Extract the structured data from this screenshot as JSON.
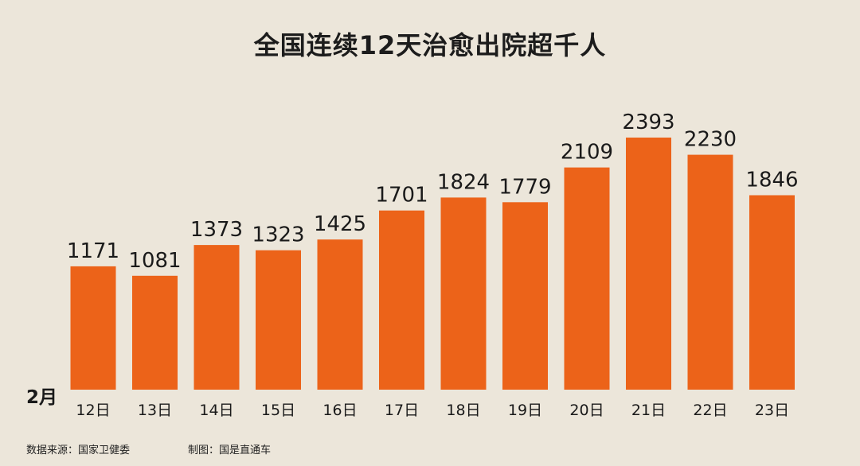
{
  "chart_data": {
    "type": "bar",
    "title": "全国连续12天治愈出院超千人",
    "month_label": "2月",
    "categories": [
      "12日",
      "13日",
      "14日",
      "15日",
      "16日",
      "17日",
      "18日",
      "19日",
      "20日",
      "21日",
      "22日",
      "23日"
    ],
    "values": [
      1171,
      1081,
      1373,
      1323,
      1425,
      1701,
      1824,
      1779,
      2109,
      2393,
      2230,
      1846
    ],
    "ylim": [
      0,
      2393
    ],
    "bar_color": "#ec6319",
    "background_color": "#ece6da",
    "grid": false
  },
  "footer": {
    "source": "数据来源：国家卫健委",
    "maker": "制图：国是直通车"
  }
}
